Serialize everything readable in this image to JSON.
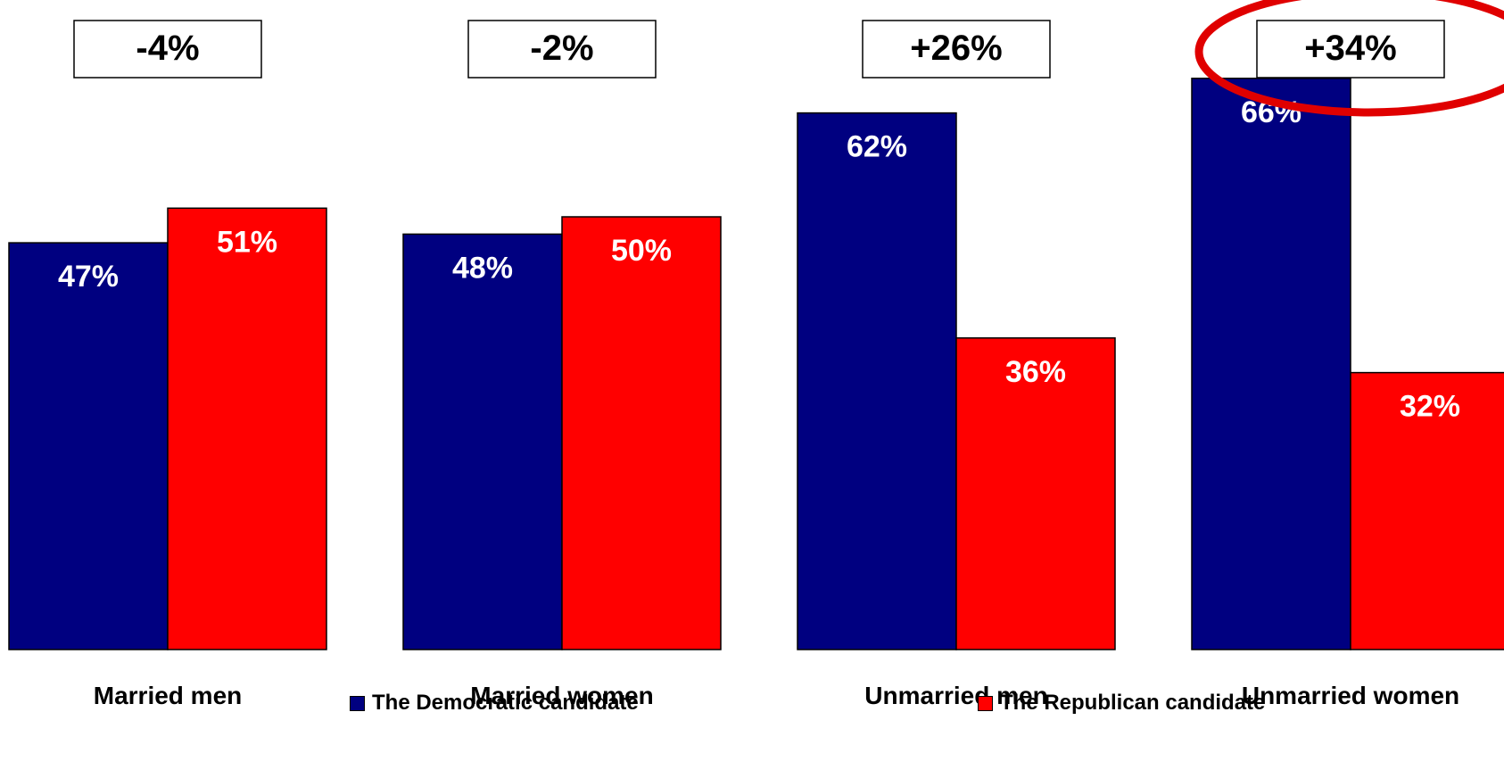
{
  "chart_data": {
    "type": "bar",
    "title": "",
    "xlabel": "",
    "ylabel": "",
    "ylim": [
      0,
      70
    ],
    "grid": false,
    "legend_position": "bottom",
    "categories": [
      "Married men",
      "Married women",
      "Unmarried men",
      "Unmarried women"
    ],
    "series": [
      {
        "name": "The Democratic candidate",
        "color": "#000080",
        "values": [
          47,
          48,
          62,
          66
        ],
        "labels": [
          "47%",
          "48%",
          "62%",
          "66%"
        ]
      },
      {
        "name": "The Republican candidate",
        "color": "#FF0000",
        "values": [
          51,
          50,
          36,
          32
        ],
        "labels": [
          "51%",
          "50%",
          "36%",
          "32%"
        ]
      }
    ],
    "margin_labels": [
      "-4%",
      "-2%",
      "+26%",
      "+34%"
    ],
    "highlight": {
      "category": "Unmarried women",
      "shape": "ellipse",
      "color": "#E00000"
    }
  }
}
